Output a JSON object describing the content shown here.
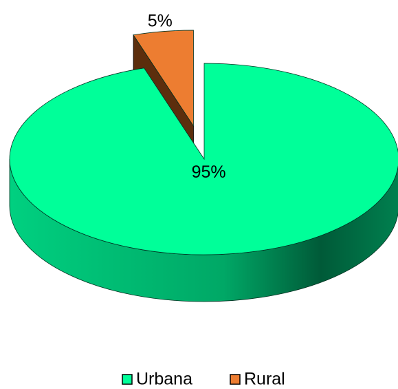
{
  "chart_data": {
    "type": "pie",
    "categories": [
      "Urbana",
      "Rural"
    ],
    "values": [
      95,
      5
    ],
    "value_labels": [
      "95%",
      "5%"
    ],
    "colors": [
      "#00ff99",
      "#ed7d31"
    ],
    "legend": "bottom"
  }
}
